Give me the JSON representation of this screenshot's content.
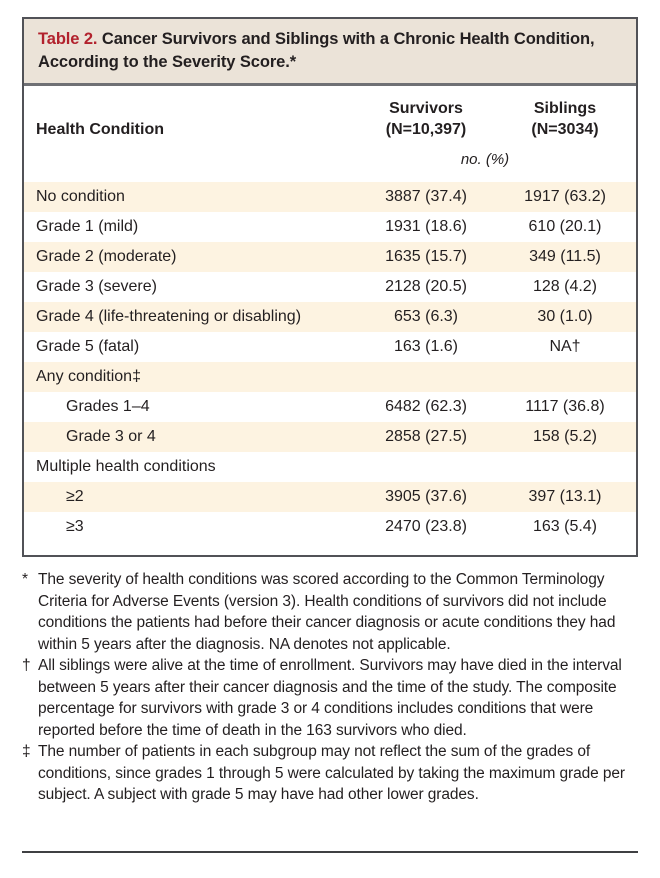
{
  "table": {
    "label": "Table 2.",
    "title": "Cancer Survivors and Siblings with a Chronic Health Condition, According to the Severity Score.*",
    "header": {
      "condition_col": "Health Condition",
      "survivors_name": "Survivors",
      "survivors_n": "(N=10,397)",
      "siblings_name": "Siblings",
      "siblings_n": "(N=3034)",
      "unit_label": "no. (%)"
    },
    "rows": [
      {
        "label": "No condition",
        "survivors": "3887 (37.4)",
        "siblings": "1917 (63.2)"
      },
      {
        "label": "Grade 1 (mild)",
        "survivors": "1931 (18.6)",
        "siblings": "610 (20.1)"
      },
      {
        "label": "Grade 2 (moderate)",
        "survivors": "1635 (15.7)",
        "siblings": "349 (11.5)"
      },
      {
        "label": "Grade 3 (severe)",
        "survivors": "2128 (20.5)",
        "siblings": "128 (4.2)"
      },
      {
        "label": "Grade 4 (life-threatening or disabling)",
        "survivors": "653 (6.3)",
        "siblings": "30 (1.0)"
      },
      {
        "label": "Grade 5 (fatal)",
        "survivors": "163 (1.6)",
        "siblings": "NA†"
      },
      {
        "label": "Any condition‡",
        "survivors": "",
        "siblings": ""
      },
      {
        "label": "Grades 1–4",
        "survivors": "6482 (62.3)",
        "siblings": "1117 (36.8)"
      },
      {
        "label": "Grade 3 or 4",
        "survivors": "2858 (27.5)",
        "siblings": "158 (5.2)"
      },
      {
        "label": "Multiple health conditions",
        "survivors": "",
        "siblings": ""
      },
      {
        "label": "≥2",
        "survivors": "3905 (37.6)",
        "siblings": "397 (13.1)"
      },
      {
        "label": "≥3",
        "survivors": "2470 (23.8)",
        "siblings": "163 (5.4)"
      }
    ]
  },
  "footnotes": [
    {
      "symbol": "*",
      "text": "The severity of health conditions was scored according to the Common Terminology Criteria for Adverse Events (version 3). Health conditions of survivors did not include conditions the patients had before their cancer diagnosis or acute conditions they had within 5 years after the diagnosis. NA denotes not applicable."
    },
    {
      "symbol": "†",
      "text": "All siblings were alive at the time of enrollment. Survivors may have died in the interval between 5 years after their cancer diagnosis and the time of the study. The composite percentage for survivors with grade 3 or 4 conditions includes conditions that were reported before the time of death in the 163 survivors who died."
    },
    {
      "symbol": "‡",
      "text": "The number of patients in each subgroup may not reflect the sum of the grades of conditions, since grades 1 through 5 were calculated by taking the maximum grade per subject. A subject with grade 5 may have had other lower grades."
    }
  ],
  "colors": {
    "accent_red": "#b2222d",
    "title_band_bg": "#ebe3d8",
    "row_stripe_bg": "#fdf3e1",
    "outer_border": "#515257",
    "text": "#231f20"
  }
}
